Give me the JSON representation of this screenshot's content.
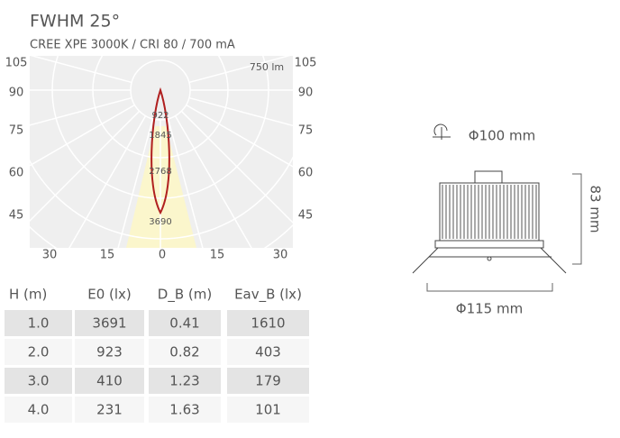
{
  "header": {
    "title": "FWHM  25°",
    "subtitle": "CREE XPE 3000K / CRI 80 / 700 mA"
  },
  "polar": {
    "flux": "750 lm",
    "left_angles": [
      "105",
      "90",
      "75",
      "60",
      "45"
    ],
    "right_angles": [
      "105",
      "90",
      "75",
      "60",
      "45"
    ],
    "bottom_labels": [
      "30",
      "15",
      "0",
      "15",
      "30"
    ],
    "ring_labels": [
      "922",
      "1845",
      "2768",
      "3690"
    ]
  },
  "table": {
    "columns": [
      "H (m)",
      "E0 (lx)",
      "D_B (m)",
      "Eav_B (lx)"
    ],
    "rows": [
      [
        "1.0",
        "3691",
        "0.41",
        "1610"
      ],
      [
        "2.0",
        "923",
        "0.82",
        "403"
      ],
      [
        "3.0",
        "410",
        "1.23",
        "179"
      ],
      [
        "4.0",
        "231",
        "1.63",
        "101"
      ]
    ]
  },
  "dimensions": {
    "top": "Φ100 mm",
    "height": "83 mm",
    "bottom": "Φ115 mm"
  }
}
